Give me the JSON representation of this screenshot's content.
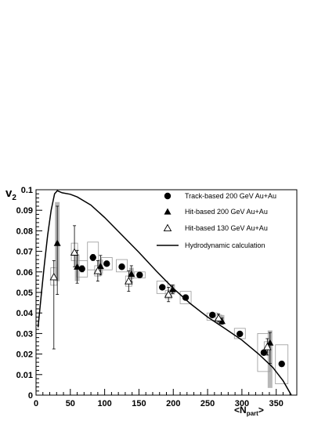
{
  "chart_data": {
    "type": "scatter",
    "title": "",
    "ylabel": {
      "main": "v",
      "sub": "2"
    },
    "xlabel": {
      "main": "<N",
      "sub": "part",
      "end": ">"
    },
    "xlim": [
      0,
      380
    ],
    "ylim": [
      0,
      0.1
    ],
    "x_ticks": [
      0,
      50,
      100,
      150,
      200,
      250,
      300,
      350
    ],
    "y_ticks": [
      0,
      0.01,
      0.02,
      0.03,
      0.04,
      0.05,
      0.06,
      0.07,
      0.08,
      0.09,
      0.1
    ],
    "y_tick_labels": [
      "0",
      "0.01",
      "0.02",
      "0.03",
      "0.04",
      "0.05",
      "0.06",
      "0.07",
      "0.08",
      "0.09",
      "0.1"
    ],
    "grid": false,
    "legend_position": "top-right",
    "series": [
      {
        "name": "Track-based 200 GeV Au+Au",
        "marker": "filled-circle",
        "points": [
          {
            "x": 67,
            "y": 0.0615,
            "err": 0.0015,
            "sys": [
              0.0575,
              0.0655
            ],
            "sys_w": 10
          },
          {
            "x": 83,
            "y": 0.067,
            "err": 0.0015,
            "sys": [
              0.061,
              0.0745
            ],
            "sys_w": 10
          },
          {
            "x": 103,
            "y": 0.064,
            "err": 0.0012,
            "sys": [
              0.061,
              0.067
            ],
            "sys_w": 10
          },
          {
            "x": 125,
            "y": 0.0625,
            "err": 0.001,
            "sys": [
              0.06,
              0.066
            ],
            "sys_w": 10
          },
          {
            "x": 151,
            "y": 0.0585,
            "err": 0.001,
            "sys": [
              0.057,
              0.06
            ],
            "sys_w": 10
          },
          {
            "x": 184,
            "y": 0.0525,
            "err": 0.001,
            "sys": [
              0.0495,
              0.0555
            ],
            "sys_w": 10
          },
          {
            "x": 218,
            "y": 0.0475,
            "err": 0.001,
            "sys": [
              0.0445,
              0.0505
            ],
            "sys_w": 10
          },
          {
            "x": 257,
            "y": 0.039,
            "err": 0.001,
            "sys": [
              0.0365,
              0.04
            ],
            "sys_w": 10
          },
          {
            "x": 297,
            "y": 0.0298,
            "err": 0.001,
            "sys": [
              0.0275,
              0.0325
            ],
            "sys_w": 10
          },
          {
            "x": 332,
            "y": 0.0207,
            "err": 0.001,
            "sys": [
              0.0115,
              0.03
            ],
            "sys_w": 12
          },
          {
            "x": 358,
            "y": 0.0152,
            "err": 0.001,
            "sys": [
              0.0055,
              0.0245
            ],
            "sys_w": 12
          }
        ]
      },
      {
        "name": "Hit-based 200 GeV Au+Au",
        "marker": "filled-triangle",
        "points": [
          {
            "x": 31,
            "y": 0.074,
            "err": [
              0.049,
              0.092
            ],
            "band": [
              0.0555,
              0.094
            ]
          },
          {
            "x": 60,
            "y": 0.0625,
            "err": [
              0.0545,
              0.0705
            ],
            "band": [
              0.0555,
              0.0685
            ]
          },
          {
            "x": 94,
            "y": 0.0628,
            "err": [
              0.0585,
              0.068
            ],
            "band": [
              0.059,
              0.066
            ]
          },
          {
            "x": 139,
            "y": 0.059,
            "err": [
              0.055,
              0.063
            ],
            "band": [
              0.0565,
              0.062
            ]
          },
          {
            "x": 199,
            "y": 0.0515,
            "err": [
              0.0495,
              0.0535
            ],
            "band": [
              0.049,
              0.054
            ]
          },
          {
            "x": 271,
            "y": 0.036,
            "err": [
              0.0345,
              0.0375
            ],
            "band": [
              0.0345,
              0.039
            ]
          },
          {
            "x": 341,
            "y": 0.0255,
            "err": [
              0.0155,
              0.0305
            ],
            "band": [
              0.0035,
              0.0315
            ]
          }
        ]
      },
      {
        "name": "Hit-based 130 GeV Au+Au",
        "marker": "open-triangle",
        "points": [
          {
            "x": 26,
            "y": 0.0575,
            "err": [
              0.0225,
              0.0655
            ],
            "sys": [
              0.0535,
              0.062
            ]
          },
          {
            "x": 56,
            "y": 0.0695,
            "err": [
              0.0625,
              0.0825
            ],
            "sys": [
              0.0655,
              0.074
            ]
          },
          {
            "x": 90,
            "y": 0.0605,
            "err": [
              0.0555,
              0.0655
            ],
            "sys": [
              0.058,
              0.063
            ]
          },
          {
            "x": 135,
            "y": 0.0555,
            "err": [
              0.0505,
              0.0605
            ],
            "sys": [
              0.053,
              0.058
            ]
          },
          {
            "x": 193,
            "y": 0.049,
            "err": [
              0.0455,
              0.0525
            ],
            "sys": [
              0.047,
              0.051
            ]
          },
          {
            "x": 266,
            "y": 0.0375,
            "err": [
              0.0355,
              0.0395
            ],
            "sys": [
              0.036,
              0.039
            ]
          },
          {
            "x": 337,
            "y": 0.0235,
            "err": [
              0.0195,
              0.0275
            ],
            "sys": [
              0.021,
              0.026
            ]
          }
        ]
      },
      {
        "name": "Hydrodynamic calculation",
        "marker": "line",
        "points": [
          {
            "x": 3,
            "y": 0.033
          },
          {
            "x": 8,
            "y": 0.05
          },
          {
            "x": 12,
            "y": 0.063
          },
          {
            "x": 17,
            "y": 0.078
          },
          {
            "x": 22,
            "y": 0.09
          },
          {
            "x": 27,
            "y": 0.098
          },
          {
            "x": 31,
            "y": 0.0995
          },
          {
            "x": 38,
            "y": 0.0985
          },
          {
            "x": 50,
            "y": 0.0978
          },
          {
            "x": 60,
            "y": 0.0965
          },
          {
            "x": 80,
            "y": 0.0925
          },
          {
            "x": 100,
            "y": 0.0865
          },
          {
            "x": 125,
            "y": 0.078
          },
          {
            "x": 150,
            "y": 0.0695
          },
          {
            "x": 175,
            "y": 0.0605
          },
          {
            "x": 200,
            "y": 0.052
          },
          {
            "x": 225,
            "y": 0.0445
          },
          {
            "x": 250,
            "y": 0.038
          },
          {
            "x": 275,
            "y": 0.0325
          },
          {
            "x": 300,
            "y": 0.0268
          },
          {
            "x": 325,
            "y": 0.0198
          },
          {
            "x": 345,
            "y": 0.0135
          },
          {
            "x": 360,
            "y": 0.007
          },
          {
            "x": 372,
            "y": 0.0
          }
        ]
      }
    ]
  }
}
